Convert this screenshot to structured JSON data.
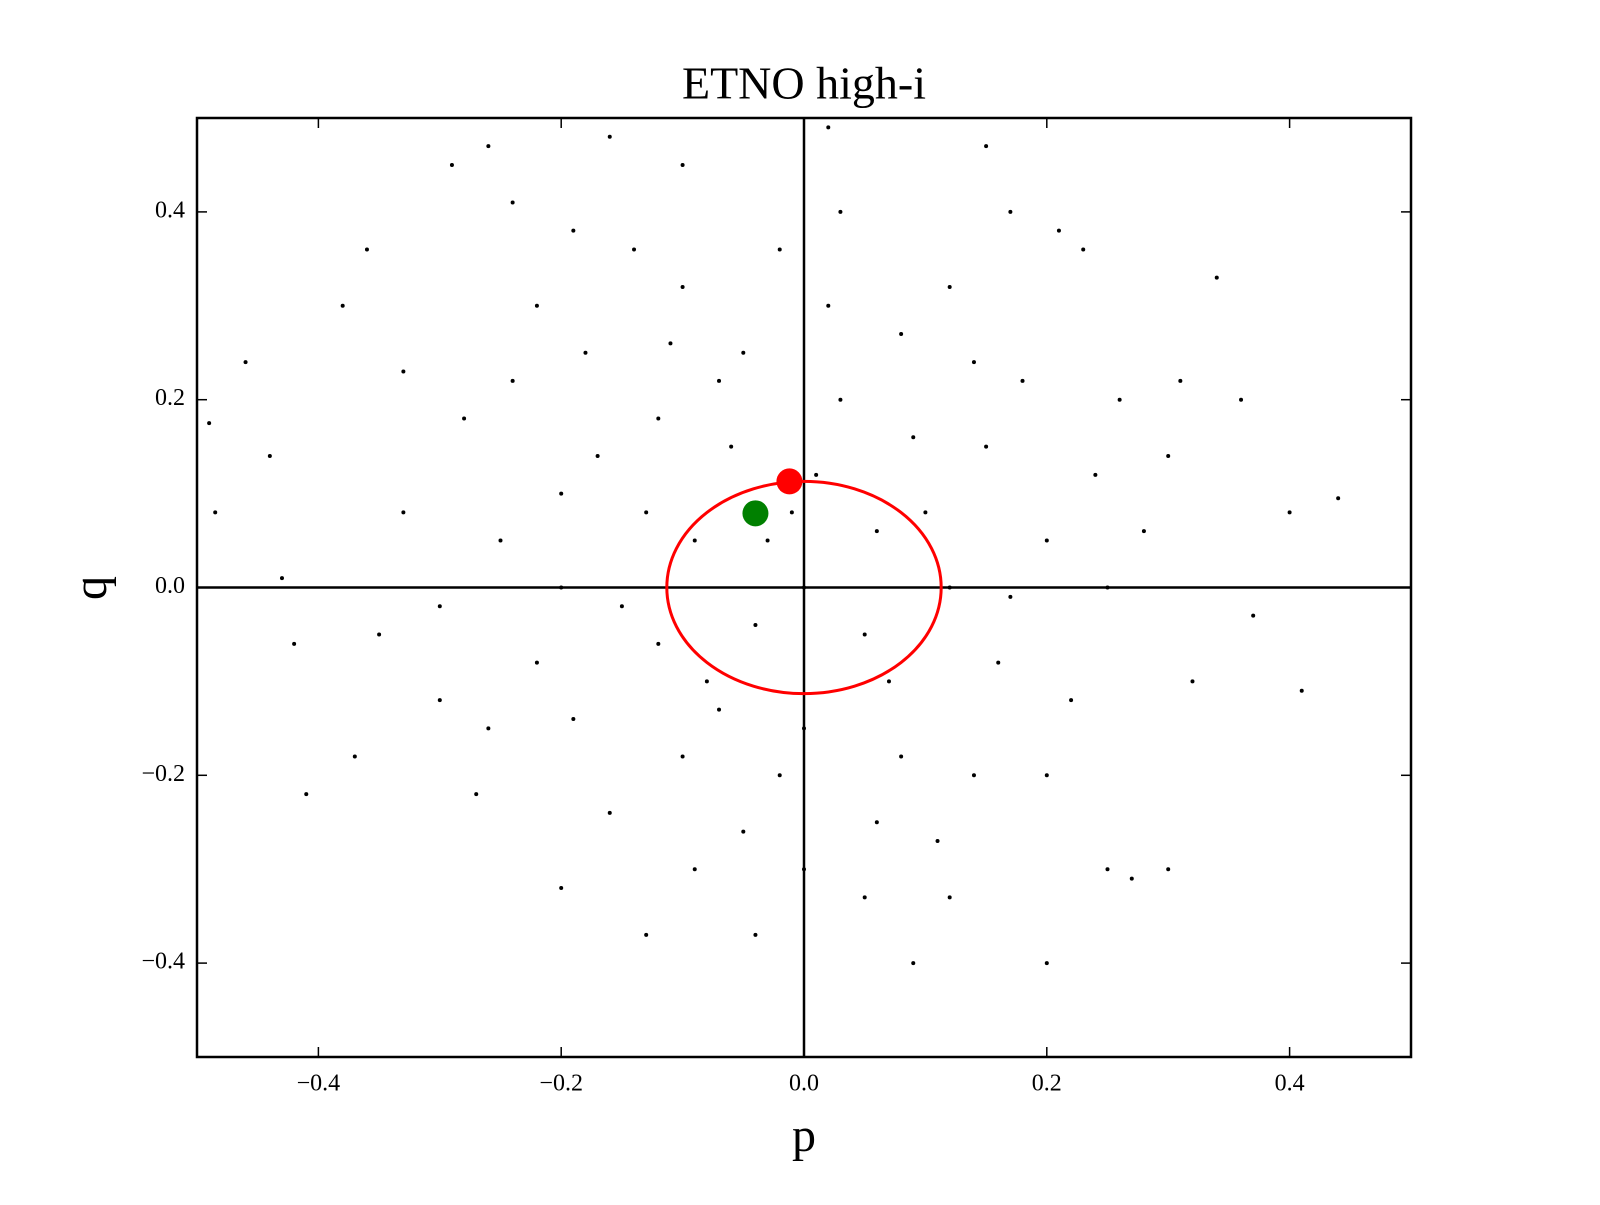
{
  "chart_data": {
    "type": "scatter",
    "title": "ETNO high-i",
    "xlabel": "p",
    "ylabel": "q",
    "xlim": [
      -0.5,
      0.5
    ],
    "ylim": [
      -0.5,
      0.5
    ],
    "xticks": [
      {
        "value": -0.4,
        "label": "−0.4"
      },
      {
        "value": -0.2,
        "label": "−0.2"
      },
      {
        "value": 0,
        "label": "0.0"
      },
      {
        "value": 0.2,
        "label": "0.2"
      },
      {
        "value": 0.4,
        "label": "0.4"
      }
    ],
    "yticks": [
      {
        "value": -0.4,
        "label": "−0.4"
      },
      {
        "value": -0.2,
        "label": "−0.2"
      },
      {
        "value": 0,
        "label": "0.0"
      },
      {
        "value": 0.2,
        "label": "0.2"
      },
      {
        "value": 0.4,
        "label": "0.4"
      }
    ],
    "hlines": [
      0
    ],
    "vlines": [
      0
    ],
    "series": [
      {
        "color": "#000000",
        "size": 2,
        "x": [
          -0.49,
          -0.485,
          -0.46,
          -0.44,
          -0.42,
          -0.41,
          -0.37,
          -0.36,
          -0.29,
          -0.26,
          -0.13,
          -0.04,
          0.09,
          0.2,
          0.3,
          0.34,
          0.36,
          0.41,
          0.44,
          0.37,
          0.4,
          0.23,
          0.15,
          0.02,
          -0.16,
          -0.1,
          0.25,
          0.27,
          0.3,
          0.31,
          -0.3,
          -0.33,
          -0.38,
          -0.43,
          0.17,
          0.21,
          -0.2,
          0.05,
          0.12,
          -0.24,
          -0.03,
          0.01,
          -0.12,
          -0.2,
          -0.15,
          -0.08,
          0.05,
          0.1,
          0.15,
          -0.05,
          0.02,
          -0.18,
          -0.25,
          -0.22,
          -0.1,
          0,
          0.08,
          0.16,
          0.2,
          0.18,
          0.08,
          -0.1,
          -0.22,
          -0.28,
          -0.3,
          -0.26,
          -0.16,
          -0.05,
          0.06,
          0.14,
          0.22,
          0.25,
          0.24,
          0.12,
          -0.02,
          -0.14,
          -0.06,
          -0.09,
          0.03,
          0.07,
          -0.12,
          -0.2,
          0.12,
          0,
          -0.04,
          0.06,
          -0.07,
          -0.17,
          -0.13,
          0.09,
          0.17,
          -0.02,
          -0.19,
          -0.24,
          0.2,
          0.28,
          -0.33,
          -0.27,
          0.11,
          -0.09,
          0.26,
          0.03,
          -0.19,
          -0.35,
          0.32,
          0,
          -0.11,
          0.14,
          -0.01,
          -0.07
        ],
        "y": [
          0.175,
          0.08,
          0.24,
          0.14,
          -0.06,
          -0.22,
          -0.18,
          0.36,
          0.45,
          0.47,
          -0.37,
          -0.37,
          -0.4,
          -0.4,
          -0.3,
          0.33,
          0.2,
          -0.11,
          0.095,
          -0.03,
          0.08,
          0.36,
          0.47,
          0.49,
          0.48,
          0.45,
          -0.3,
          -0.31,
          0.14,
          0.22,
          -0.12,
          0.23,
          0.3,
          0.01,
          0.4,
          0.38,
          -0.32,
          -0.33,
          -0.33,
          0.41,
          0.05,
          0.12,
          0.18,
          0.1,
          -0.02,
          -0.1,
          -0.05,
          0.08,
          0.15,
          0.25,
          0.3,
          0.25,
          0.05,
          -0.08,
          -0.18,
          -0.15,
          -0.18,
          -0.08,
          0.05,
          0.22,
          0.27,
          0.32,
          0.3,
          0.18,
          -0.02,
          -0.15,
          -0.24,
          -0.26,
          -0.25,
          -0.2,
          -0.12,
          0,
          0.12,
          0.32,
          0.36,
          0.36,
          0.15,
          0.05,
          0.2,
          -0.1,
          -0.06,
          0,
          0,
          0,
          -0.04,
          0.06,
          0.22,
          0.14,
          0.08,
          0.16,
          -0.01,
          -0.2,
          -0.14,
          0.22,
          -0.2,
          0.06,
          0.08,
          -0.22,
          -0.27,
          -0.3,
          0.2,
          0.4,
          0.38,
          -0.05,
          -0.1,
          -0.3,
          0.26,
          0.24,
          0.08,
          -0.13
        ]
      },
      {
        "color": "#ff0000",
        "size": 13,
        "x": [
          -0.012
        ],
        "y": [
          0.113
        ]
      },
      {
        "color": "#008000",
        "size": 13,
        "x": [
          -0.04
        ],
        "y": [
          0.079
        ]
      }
    ],
    "circle": {
      "center": [
        0,
        0
      ],
      "radius": 0.113,
      "color": "#ff0000"
    }
  }
}
